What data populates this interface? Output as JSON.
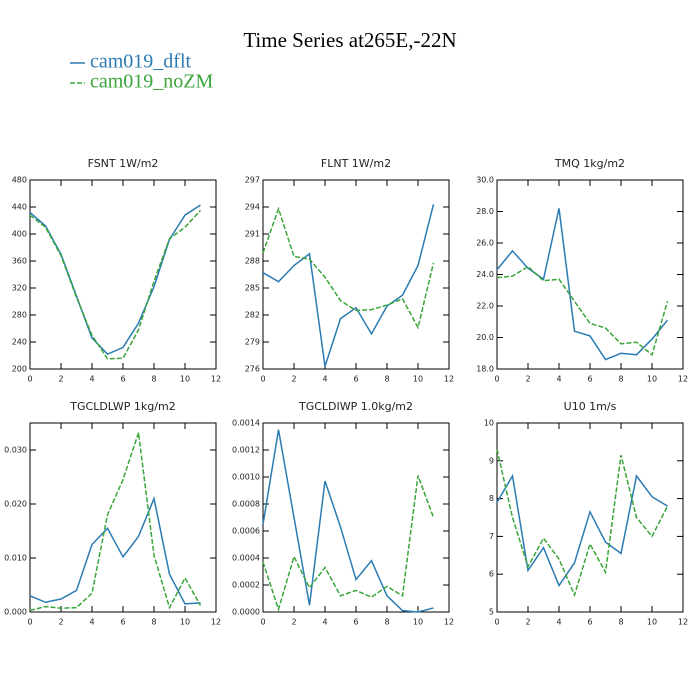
{
  "title": "Time Series at265E,-22N",
  "legend": [
    {
      "name": "cam019_dflt",
      "color": "#2b7bb3",
      "dash": "none"
    },
    {
      "name": "cam019_noZM",
      "color": "#3aa53a",
      "dash": "5,2"
    }
  ],
  "chart_data": [
    {
      "type": "line",
      "title": "FSNT   1W/m2",
      "x": [
        0,
        1,
        2,
        3,
        4,
        5,
        6,
        7,
        8,
        9,
        10,
        11
      ],
      "xlim": [
        0,
        12
      ],
      "xticks": [
        0,
        2,
        4,
        6,
        8,
        10,
        12
      ],
      "ylim": [
        200,
        480
      ],
      "yticks": [
        200,
        240,
        280,
        320,
        360,
        400,
        440,
        480
      ],
      "series": [
        {
          "values": [
            432,
            412,
            370,
            308,
            246,
            222,
            232,
            268,
            322,
            392,
            428,
            443
          ]
        },
        {
          "values": [
            428,
            410,
            368,
            306,
            250,
            215,
            216,
            258,
            330,
            393,
            410,
            435
          ]
        }
      ]
    },
    {
      "type": "line",
      "title": "FLNT   1W/m2",
      "x": [
        0,
        1,
        2,
        3,
        4,
        5,
        6,
        7,
        8,
        9,
        10,
        11
      ],
      "xlim": [
        0,
        12
      ],
      "xticks": [
        0,
        2,
        4,
        6,
        8,
        10,
        12
      ],
      "ylim": [
        276,
        297
      ],
      "yticks": [
        276,
        279,
        282,
        285,
        288,
        291,
        294,
        297
      ],
      "series": [
        {
          "values": [
            286.7,
            285.7,
            287.5,
            288.8,
            276.3,
            281.6,
            282.8,
            279.9,
            283,
            284.2,
            287.5,
            294.3
          ]
        },
        {
          "values": [
            288.9,
            293.8,
            288.5,
            288.2,
            286.2,
            283.6,
            282.5,
            282.6,
            283.1,
            283.8,
            280.6,
            287.8
          ]
        }
      ]
    },
    {
      "type": "line",
      "title": "TMQ   1kg/m2",
      "x": [
        0,
        1,
        2,
        3,
        4,
        5,
        6,
        7,
        8,
        9,
        10,
        11
      ],
      "xlim": [
        0,
        12
      ],
      "xticks": [
        0,
        2,
        4,
        6,
        8,
        10,
        12
      ],
      "ylim": [
        18,
        30
      ],
      "yticks": [
        {
          "value": 18,
          "label": "18.0"
        },
        {
          "value": 20,
          "label": "20.0"
        },
        {
          "value": 22,
          "label": "22.0"
        },
        {
          "value": 24,
          "label": "24.0"
        },
        {
          "value": 26,
          "label": "26.0"
        },
        {
          "value": 28,
          "label": "28.0"
        },
        {
          "value": 30,
          "label": "30.0"
        }
      ],
      "series": [
        {
          "values": [
            24.3,
            25.5,
            24.4,
            23.7,
            28.2,
            20.4,
            20.1,
            18.6,
            19.0,
            18.9,
            19.9,
            21.1
          ]
        },
        {
          "values": [
            23.8,
            23.9,
            24.5,
            23.6,
            23.7,
            22.3,
            20.9,
            20.6,
            19.6,
            19.7,
            18.9,
            22.3
          ]
        }
      ]
    },
    {
      "type": "line",
      "title": "TGCLDLWP   1kg/m2",
      "x": [
        0,
        1,
        2,
        3,
        4,
        5,
        6,
        7,
        8,
        9,
        10,
        11
      ],
      "xlim": [
        0,
        12
      ],
      "xticks": [
        0,
        2,
        4,
        6,
        8,
        10,
        12
      ],
      "ylim": [
        0,
        0.035
      ],
      "yticks": [
        {
          "value": 0,
          "label": "0.000"
        },
        {
          "value": 0.01,
          "label": "0.010"
        },
        {
          "value": 0.02,
          "label": "0.020"
        },
        {
          "value": 0.03,
          "label": "0.030"
        }
      ],
      "series": [
        {
          "values": [
            0.003,
            0.0018,
            0.0024,
            0.004,
            0.0125,
            0.0155,
            0.0102,
            0.014,
            0.021,
            0.007,
            0.0015,
            0.0017
          ]
        },
        {
          "values": [
            0.0003,
            0.001,
            0.0007,
            0.0008,
            0.0035,
            0.018,
            0.0245,
            0.0332,
            0.0105,
            0.0008,
            0.0063,
            0.0012
          ]
        }
      ]
    },
    {
      "type": "line",
      "title": "TGCLDIWP   1.0kg/m2",
      "x": [
        0,
        1,
        2,
        3,
        4,
        5,
        6,
        7,
        8,
        9,
        10,
        11
      ],
      "xlim": [
        0,
        12
      ],
      "xticks": [
        0,
        2,
        4,
        6,
        8,
        10,
        12
      ],
      "ylim": [
        0,
        0.0014
      ],
      "yticks": [
        {
          "value": 0,
          "label": "0.0000"
        },
        {
          "value": 0.0002,
          "label": "0.0002"
        },
        {
          "value": 0.0004,
          "label": "0.0004"
        },
        {
          "value": 0.0006,
          "label": "0.0006"
        },
        {
          "value": 0.0008,
          "label": "0.0008"
        },
        {
          "value": 0.001,
          "label": "0.0010"
        },
        {
          "value": 0.0012,
          "label": "0.0012"
        },
        {
          "value": 0.0014,
          "label": "0.0014"
        }
      ],
      "series": [
        {
          "values": [
            0.00065,
            0.00135,
            0.0007,
            5e-05,
            0.00097,
            0.00063,
            0.00024,
            0.00038,
            0.00012,
            1e-05,
            0,
            3e-05
          ]
        },
        {
          "values": [
            0.00037,
            2e-05,
            0.00041,
            0.00018,
            0.00033,
            0.00012,
            0.00016,
            0.00011,
            0.00019,
            0.00012,
            0.00101,
            0.0007
          ]
        }
      ]
    },
    {
      "type": "line",
      "title": "U10   1m/s",
      "x": [
        0,
        1,
        2,
        3,
        4,
        5,
        6,
        7,
        8,
        9,
        10,
        11
      ],
      "xlim": [
        0,
        12
      ],
      "xticks": [
        0,
        2,
        4,
        6,
        8,
        10,
        12
      ],
      "ylim": [
        5,
        10
      ],
      "yticks": [
        5,
        6,
        7,
        8,
        9,
        10
      ],
      "series": [
        {
          "values": [
            7.9,
            8.6,
            6.1,
            6.7,
            5.7,
            6.3,
            7.65,
            6.85,
            6.55,
            8.6,
            8.05,
            7.8
          ]
        },
        {
          "values": [
            9.3,
            7.5,
            6.2,
            6.95,
            6.4,
            5.45,
            6.8,
            6.05,
            9.15,
            7.5,
            7.0,
            7.8
          ]
        }
      ]
    }
  ]
}
